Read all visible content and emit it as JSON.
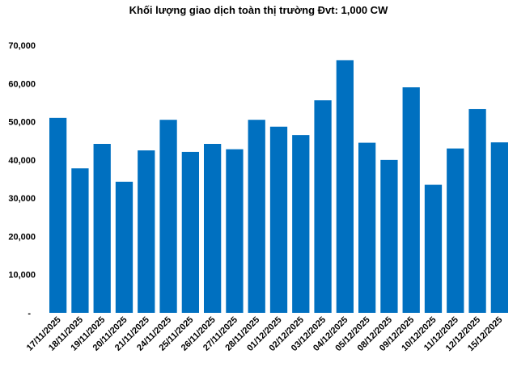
{
  "chart_data": {
    "type": "bar",
    "title": "Khối lượng giao dịch toàn thị trường Đvt: 1,000 CW",
    "categories": [
      "17/11/2025",
      "18/11/2025",
      "19/11/2025",
      "20/11/2025",
      "21/11/2025",
      "24/11/2025",
      "25/11/2025",
      "26/11/2025",
      "27/11/2025",
      "28/11/2025",
      "01/12/2025",
      "02/12/2025",
      "03/12/2025",
      "04/12/2025",
      "05/12/2025",
      "08/12/2025",
      "09/12/2025",
      "10/12/2025",
      "11/12/2025",
      "12/12/2025",
      "15/12/2025"
    ],
    "values": [
      51000,
      37800,
      44200,
      34300,
      42500,
      50500,
      42100,
      44200,
      42800,
      50500,
      48700,
      46500,
      55600,
      66100,
      44500,
      40000,
      59000,
      33500,
      43000,
      53300,
      44600
    ],
    "ylim": [
      0,
      70000
    ],
    "yticks": [
      0,
      10000,
      20000,
      30000,
      40000,
      50000,
      60000,
      70000
    ],
    "ytick_labels": [
      "-",
      "10,000",
      "20,000",
      "30,000",
      "40,000",
      "50,000",
      "60,000",
      "70,000"
    ],
    "bar_color": "#0070C0",
    "grid": false,
    "legend": "none"
  }
}
